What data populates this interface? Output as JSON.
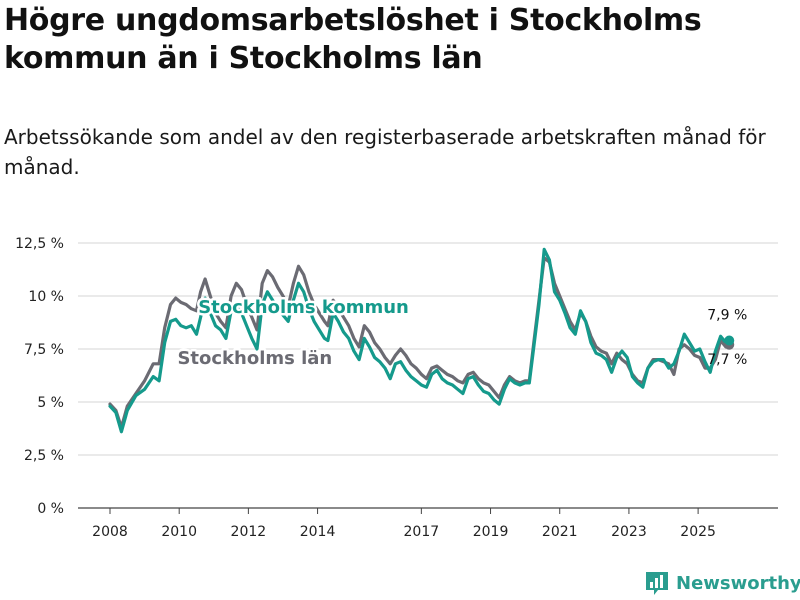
{
  "header": {
    "title": "Högre ungdomsarbetslöshet i Stockholms kommun än i Stockholms län",
    "subtitle": "Arbetssökande som andel av den registerbaserade arbetskraften månad för månad."
  },
  "brand": {
    "name": "Newsworthy",
    "icon": "bar-chart-logo-icon",
    "color": "#2a9d8f"
  },
  "chart_data": {
    "type": "line",
    "title": "Högre ungdomsarbetslöshet i Stockholms kommun än i Stockholms län",
    "subtitle": "Arbetssökande som andel av den registerbaserade arbetskraften månad för månad.",
    "xlabel": "",
    "ylabel": "",
    "xlim": [
      2008.0,
      2026.5
    ],
    "ylim": [
      0,
      12.5
    ],
    "grid": true,
    "y_ticks": [
      {
        "value": 0,
        "label": "0 %"
      },
      {
        "value": 2.5,
        "label": "2,5 %"
      },
      {
        "value": 5,
        "label": "5 %"
      },
      {
        "value": 7.5,
        "label": "7,5 %"
      },
      {
        "value": 10,
        "label": "10 %"
      },
      {
        "value": 12.5,
        "label": "12,5 %"
      }
    ],
    "x_ticks": [
      {
        "value": 2008,
        "label": "2008"
      },
      {
        "value": 2010,
        "label": "2010"
      },
      {
        "value": 2012,
        "label": "2012"
      },
      {
        "value": 2014,
        "label": "2014"
      },
      {
        "value": 2017,
        "label": "2017"
      },
      {
        "value": 2019,
        "label": "2019"
      },
      {
        "value": 2021,
        "label": "2021"
      },
      {
        "value": 2023,
        "label": "2023"
      },
      {
        "value": 2025,
        "label": "2025"
      }
    ],
    "series": [
      {
        "name": "Stockholms län",
        "color": "#6b6b73",
        "label_at": [
          2009.95,
          6.8
        ],
        "end_label": "7,7 %",
        "points": [
          [
            2008.0,
            4.9
          ],
          [
            2008.17,
            4.6
          ],
          [
            2008.33,
            3.8
          ],
          [
            2008.5,
            4.8
          ],
          [
            2008.75,
            5.4
          ],
          [
            2009.0,
            6.0
          ],
          [
            2009.25,
            6.8
          ],
          [
            2009.42,
            6.8
          ],
          [
            2009.58,
            8.5
          ],
          [
            2009.75,
            9.6
          ],
          [
            2009.9,
            9.9
          ],
          [
            2010.05,
            9.7
          ],
          [
            2010.2,
            9.6
          ],
          [
            2010.35,
            9.4
          ],
          [
            2010.5,
            9.3
          ],
          [
            2010.62,
            10.2
          ],
          [
            2010.75,
            10.8
          ],
          [
            2010.9,
            10.0
          ],
          [
            2011.05,
            9.2
          ],
          [
            2011.2,
            8.8
          ],
          [
            2011.35,
            8.5
          ],
          [
            2011.5,
            10.0
          ],
          [
            2011.65,
            10.6
          ],
          [
            2011.8,
            10.3
          ],
          [
            2011.95,
            9.6
          ],
          [
            2012.1,
            9.0
          ],
          [
            2012.25,
            8.4
          ],
          [
            2012.4,
            10.6
          ],
          [
            2012.55,
            11.2
          ],
          [
            2012.7,
            10.9
          ],
          [
            2012.85,
            10.4
          ],
          [
            2013.0,
            10.0
          ],
          [
            2013.15,
            9.5
          ],
          [
            2013.3,
            10.6
          ],
          [
            2013.45,
            11.4
          ],
          [
            2013.6,
            11.0
          ],
          [
            2013.75,
            10.2
          ],
          [
            2013.9,
            9.6
          ],
          [
            2014.05,
            9.2
          ],
          [
            2014.2,
            8.8
          ],
          [
            2014.3,
            8.6
          ],
          [
            2014.45,
            9.8
          ],
          [
            2014.6,
            9.4
          ],
          [
            2014.75,
            9.0
          ],
          [
            2014.9,
            8.6
          ],
          [
            2015.05,
            8.0
          ],
          [
            2015.2,
            7.6
          ],
          [
            2015.35,
            8.6
          ],
          [
            2015.5,
            8.3
          ],
          [
            2015.65,
            7.8
          ],
          [
            2015.8,
            7.5
          ],
          [
            2015.95,
            7.1
          ],
          [
            2016.1,
            6.8
          ],
          [
            2016.25,
            7.2
          ],
          [
            2016.4,
            7.5
          ],
          [
            2016.55,
            7.2
          ],
          [
            2016.7,
            6.8
          ],
          [
            2016.85,
            6.6
          ],
          [
            2017.0,
            6.3
          ],
          [
            2017.15,
            6.1
          ],
          [
            2017.3,
            6.6
          ],
          [
            2017.45,
            6.7
          ],
          [
            2017.6,
            6.5
          ],
          [
            2017.75,
            6.3
          ],
          [
            2017.9,
            6.2
          ],
          [
            2018.05,
            6.0
          ],
          [
            2018.2,
            5.9
          ],
          [
            2018.35,
            6.3
          ],
          [
            2018.5,
            6.4
          ],
          [
            2018.65,
            6.1
          ],
          [
            2018.8,
            5.9
          ],
          [
            2018.95,
            5.8
          ],
          [
            2019.1,
            5.5
          ],
          [
            2019.25,
            5.2
          ],
          [
            2019.4,
            5.8
          ],
          [
            2019.55,
            6.2
          ],
          [
            2019.7,
            6.0
          ],
          [
            2019.85,
            5.9
          ],
          [
            2020.0,
            6.0
          ],
          [
            2020.12,
            6.0
          ],
          [
            2020.25,
            7.8
          ],
          [
            2020.4,
            9.8
          ],
          [
            2020.55,
            11.8
          ],
          [
            2020.7,
            11.6
          ],
          [
            2020.85,
            10.6
          ],
          [
            2021.0,
            10.0
          ],
          [
            2021.15,
            9.4
          ],
          [
            2021.3,
            8.8
          ],
          [
            2021.45,
            8.4
          ],
          [
            2021.6,
            9.2
          ],
          [
            2021.75,
            8.8
          ],
          [
            2021.9,
            8.1
          ],
          [
            2022.05,
            7.6
          ],
          [
            2022.2,
            7.4
          ],
          [
            2022.35,
            7.3
          ],
          [
            2022.5,
            6.8
          ],
          [
            2022.65,
            7.3
          ],
          [
            2022.8,
            7.0
          ],
          [
            2022.95,
            6.8
          ],
          [
            2023.1,
            6.3
          ],
          [
            2023.25,
            6.0
          ],
          [
            2023.4,
            5.9
          ],
          [
            2023.55,
            6.6
          ],
          [
            2023.7,
            7.0
          ],
          [
            2023.85,
            7.0
          ],
          [
            2024.0,
            6.9
          ],
          [
            2024.15,
            6.8
          ],
          [
            2024.3,
            6.3
          ],
          [
            2024.45,
            7.5
          ],
          [
            2024.6,
            7.7
          ],
          [
            2024.75,
            7.5
          ],
          [
            2024.9,
            7.2
          ],
          [
            2025.05,
            7.1
          ],
          [
            2025.2,
            6.6
          ],
          [
            2025.35,
            6.6
          ],
          [
            2025.5,
            7.0
          ],
          [
            2025.65,
            7.9
          ],
          [
            2025.8,
            7.6
          ],
          [
            2025.9,
            7.7
          ]
        ]
      },
      {
        "name": "Stockholms kommun",
        "color": "#159a8c",
        "label_at": [
          2010.55,
          9.2
        ],
        "end_label": "7,9 %",
        "points": [
          [
            2008.0,
            4.8
          ],
          [
            2008.17,
            4.5
          ],
          [
            2008.33,
            3.6
          ],
          [
            2008.5,
            4.6
          ],
          [
            2008.75,
            5.3
          ],
          [
            2009.0,
            5.6
          ],
          [
            2009.25,
            6.2
          ],
          [
            2009.42,
            6.0
          ],
          [
            2009.58,
            7.8
          ],
          [
            2009.75,
            8.8
          ],
          [
            2009.9,
            8.9
          ],
          [
            2010.05,
            8.6
          ],
          [
            2010.2,
            8.5
          ],
          [
            2010.35,
            8.6
          ],
          [
            2010.5,
            8.2
          ],
          [
            2010.62,
            9.0
          ],
          [
            2010.75,
            9.9
          ],
          [
            2010.9,
            9.2
          ],
          [
            2011.05,
            8.6
          ],
          [
            2011.2,
            8.4
          ],
          [
            2011.35,
            8.0
          ],
          [
            2011.5,
            9.3
          ],
          [
            2011.65,
            9.6
          ],
          [
            2011.8,
            9.2
          ],
          [
            2011.95,
            8.6
          ],
          [
            2012.1,
            8.0
          ],
          [
            2012.25,
            7.5
          ],
          [
            2012.4,
            9.6
          ],
          [
            2012.55,
            10.2
          ],
          [
            2012.7,
            9.8
          ],
          [
            2012.85,
            9.4
          ],
          [
            2013.0,
            9.1
          ],
          [
            2013.15,
            8.8
          ],
          [
            2013.3,
            9.8
          ],
          [
            2013.45,
            10.6
          ],
          [
            2013.6,
            10.2
          ],
          [
            2013.75,
            9.4
          ],
          [
            2013.9,
            8.8
          ],
          [
            2014.05,
            8.4
          ],
          [
            2014.2,
            8.0
          ],
          [
            2014.3,
            7.9
          ],
          [
            2014.45,
            9.2
          ],
          [
            2014.6,
            8.8
          ],
          [
            2014.75,
            8.3
          ],
          [
            2014.9,
            8.0
          ],
          [
            2015.05,
            7.4
          ],
          [
            2015.2,
            7.0
          ],
          [
            2015.35,
            8.0
          ],
          [
            2015.5,
            7.6
          ],
          [
            2015.65,
            7.1
          ],
          [
            2015.8,
            6.9
          ],
          [
            2015.95,
            6.6
          ],
          [
            2016.1,
            6.1
          ],
          [
            2016.25,
            6.8
          ],
          [
            2016.4,
            6.9
          ],
          [
            2016.55,
            6.5
          ],
          [
            2016.7,
            6.2
          ],
          [
            2016.85,
            6.0
          ],
          [
            2017.0,
            5.8
          ],
          [
            2017.15,
            5.7
          ],
          [
            2017.3,
            6.3
          ],
          [
            2017.45,
            6.5
          ],
          [
            2017.6,
            6.1
          ],
          [
            2017.75,
            5.9
          ],
          [
            2017.9,
            5.8
          ],
          [
            2018.05,
            5.6
          ],
          [
            2018.2,
            5.4
          ],
          [
            2018.35,
            6.1
          ],
          [
            2018.5,
            6.2
          ],
          [
            2018.65,
            5.8
          ],
          [
            2018.8,
            5.5
          ],
          [
            2018.95,
            5.4
          ],
          [
            2019.1,
            5.1
          ],
          [
            2019.25,
            4.9
          ],
          [
            2019.4,
            5.6
          ],
          [
            2019.55,
            6.1
          ],
          [
            2019.7,
            5.9
          ],
          [
            2019.85,
            5.8
          ],
          [
            2020.0,
            5.9
          ],
          [
            2020.12,
            5.9
          ],
          [
            2020.25,
            7.6
          ],
          [
            2020.4,
            9.6
          ],
          [
            2020.55,
            12.2
          ],
          [
            2020.7,
            11.7
          ],
          [
            2020.85,
            10.2
          ],
          [
            2021.0,
            9.8
          ],
          [
            2021.15,
            9.2
          ],
          [
            2021.3,
            8.5
          ],
          [
            2021.45,
            8.2
          ],
          [
            2021.6,
            9.3
          ],
          [
            2021.75,
            8.8
          ],
          [
            2021.9,
            7.8
          ],
          [
            2022.05,
            7.3
          ],
          [
            2022.2,
            7.2
          ],
          [
            2022.35,
            7.0
          ],
          [
            2022.5,
            6.4
          ],
          [
            2022.65,
            7.1
          ],
          [
            2022.8,
            7.4
          ],
          [
            2022.95,
            7.1
          ],
          [
            2023.1,
            6.2
          ],
          [
            2023.25,
            5.9
          ],
          [
            2023.4,
            5.7
          ],
          [
            2023.55,
            6.6
          ],
          [
            2023.7,
            6.9
          ],
          [
            2023.85,
            7.0
          ],
          [
            2024.0,
            7.0
          ],
          [
            2024.15,
            6.6
          ],
          [
            2024.3,
            6.8
          ],
          [
            2024.45,
            7.4
          ],
          [
            2024.6,
            8.2
          ],
          [
            2024.75,
            7.8
          ],
          [
            2024.9,
            7.4
          ],
          [
            2025.05,
            7.5
          ],
          [
            2025.2,
            6.9
          ],
          [
            2025.35,
            6.4
          ],
          [
            2025.5,
            7.4
          ],
          [
            2025.65,
            8.1
          ],
          [
            2025.8,
            7.8
          ],
          [
            2025.9,
            7.9
          ]
        ]
      }
    ]
  }
}
